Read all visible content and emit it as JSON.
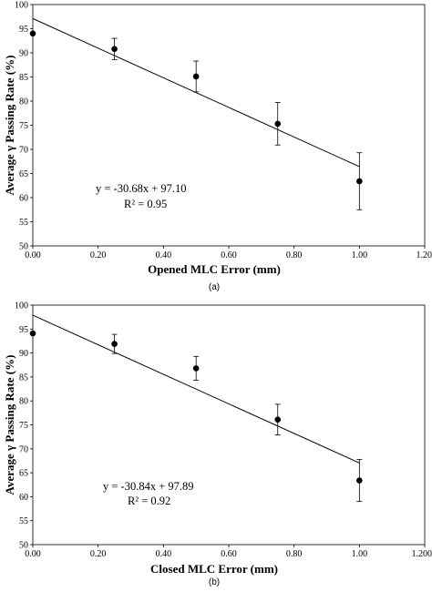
{
  "chart_data": [
    {
      "type": "scatter",
      "panel_label": "(a)",
      "xlabel": "Opened MLC Error (mm)",
      "ylabel": "Average γ Passing Rate (%)",
      "xlim": [
        0,
        1.2
      ],
      "ylim": [
        50,
        100
      ],
      "x_ticks": [
        "0.00",
        "0.20",
        "0.40",
        "0.60",
        "0.80",
        "1.00",
        "1.20"
      ],
      "y_ticks": [
        "50",
        "55",
        "60",
        "65",
        "70",
        "75",
        "80",
        "85",
        "90",
        "95",
        "100"
      ],
      "points": [
        {
          "x": 0.0,
          "y": 94.0,
          "err": 0
        },
        {
          "x": 0.25,
          "y": 90.8,
          "err": 2.2
        },
        {
          "x": 0.5,
          "y": 85.1,
          "err": 3.2
        },
        {
          "x": 0.75,
          "y": 75.3,
          "err": 4.4
        },
        {
          "x": 1.0,
          "y": 63.4,
          "err": 5.9
        }
      ],
      "fit": {
        "slope": -30.68,
        "intercept": 97.1
      },
      "equation": "y = -30.68x + 97.10",
      "r2": "R² = 0.95"
    },
    {
      "type": "scatter",
      "panel_label": "(b)",
      "xlabel": "Closed MLC Error (mm)",
      "ylabel": "Average γ Passing Rate (%)",
      "xlim": [
        0,
        1.2
      ],
      "ylim": [
        50,
        100
      ],
      "x_ticks": [
        "0.00",
        "0.20",
        "0.40",
        "0.60",
        "0.80",
        "1.00",
        "1.200"
      ],
      "y_ticks": [
        "50",
        "55",
        "60",
        "65",
        "70",
        "75",
        "80",
        "85",
        "90",
        "95",
        "100"
      ],
      "points": [
        {
          "x": 0.0,
          "y": 94.1,
          "err": 0
        },
        {
          "x": 0.25,
          "y": 91.9,
          "err": 2.0
        },
        {
          "x": 0.5,
          "y": 86.8,
          "err": 2.5
        },
        {
          "x": 0.75,
          "y": 76.1,
          "err": 3.2
        },
        {
          "x": 1.0,
          "y": 63.4,
          "err": 4.4
        }
      ],
      "fit": {
        "slope": -30.84,
        "intercept": 97.89
      },
      "equation": "y = -30.84x + 97.89",
      "r2": "R² = 0.92"
    }
  ]
}
